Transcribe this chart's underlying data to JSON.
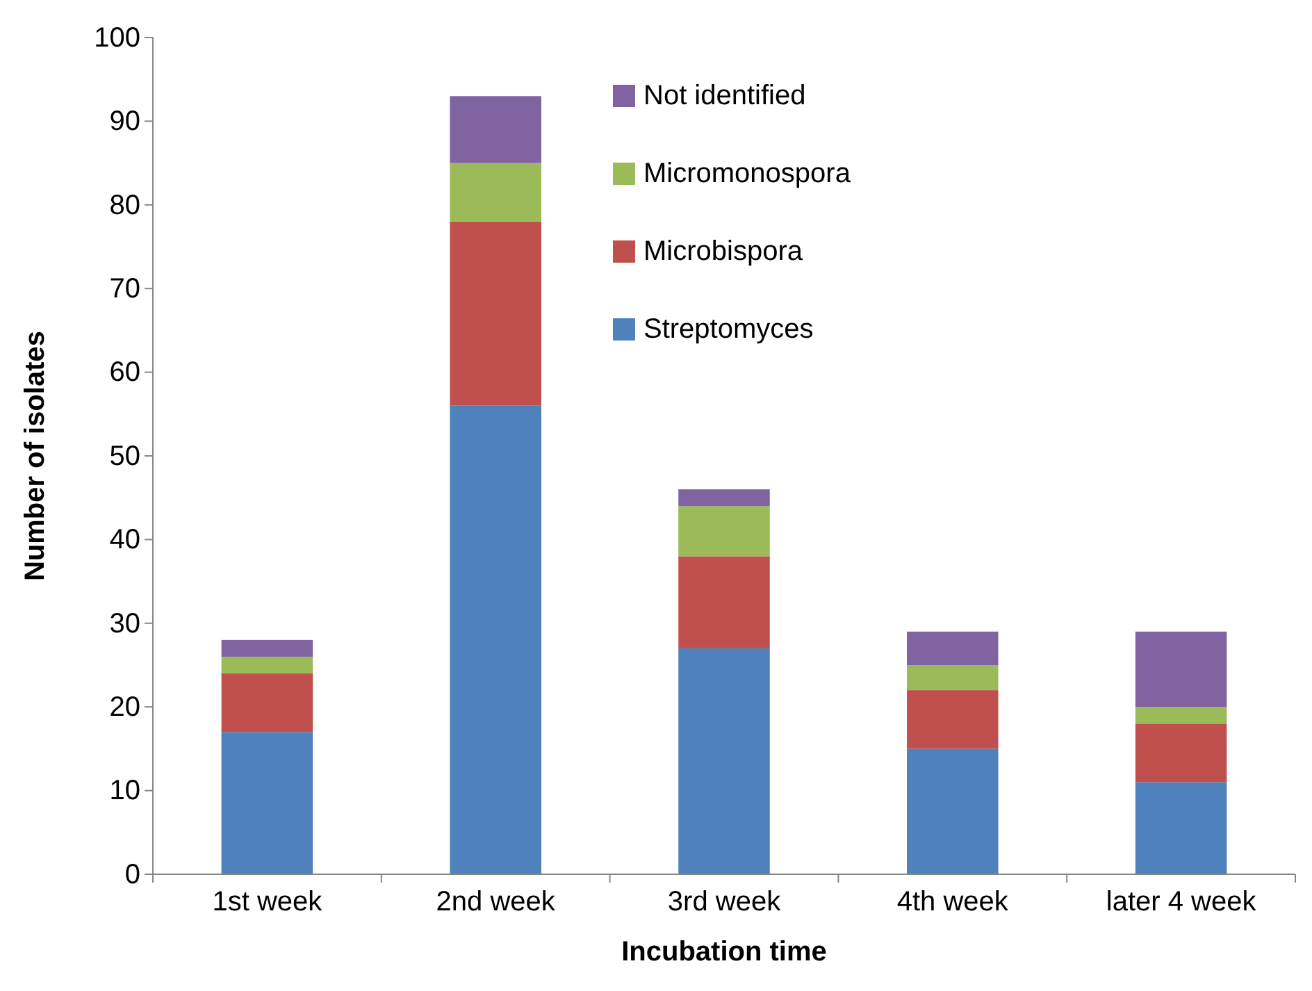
{
  "chart_data": {
    "type": "bar",
    "stacked": true,
    "xlabel": "Incubation time",
    "ylabel": "Number of isolates",
    "categories": [
      "1st week",
      "2nd week",
      "3rd week",
      "4th week",
      "later 4 week"
    ],
    "series": [
      {
        "name": "Streptomyces",
        "color": "#4f81bd",
        "values": [
          17,
          56,
          27,
          15,
          11
        ]
      },
      {
        "name": "Microbispora",
        "color": "#c0504d",
        "values": [
          7,
          22,
          11,
          7,
          7
        ]
      },
      {
        "name": "Micromonospora",
        "color": "#9bbb59",
        "values": [
          2,
          7,
          6,
          3,
          2
        ]
      },
      {
        "name": "Not identified",
        "color": "#8064a2",
        "values": [
          2,
          8,
          2,
          4,
          9
        ]
      }
    ],
    "ylim": [
      0,
      100
    ],
    "yticks": [
      0,
      10,
      20,
      30,
      40,
      50,
      60,
      70,
      80,
      90,
      100
    ],
    "grid": false,
    "legend": "top"
  }
}
